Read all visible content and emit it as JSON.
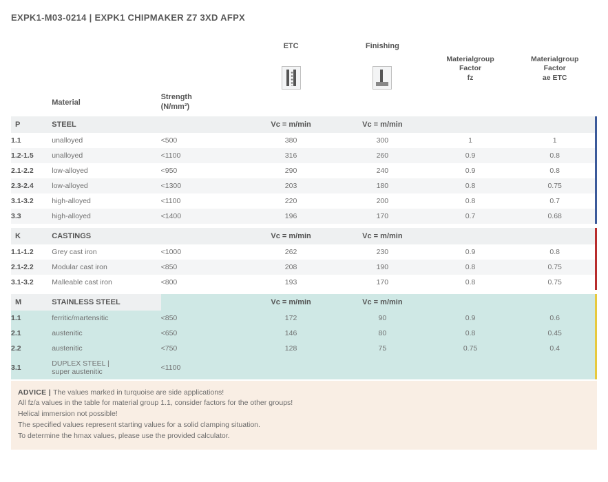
{
  "title_code": "EXPK1-M03-0214",
  "title_sep": " | ",
  "title_name": "EXPK1 CHIPMAKER Z7 3XD AFPX",
  "headers": {
    "material": "Material",
    "strength": "Strength\n(N/mm²)",
    "etc": "ETC",
    "finishing": "Finishing",
    "fz": "Materialgroup\nFactor\nfz",
    "ae": "Materialgroup\nFactor\nae ETC",
    "vc": "Vc = m/min"
  },
  "colors": {
    "group_bg": "#eef0f1",
    "turquoise": "#cfe8e5",
    "accent_p": "#3b5a9a",
    "accent_k": "#b82c2c",
    "accent_m": "#e7c93e",
    "advice_bg": "#f9eee4"
  },
  "groups": [
    {
      "code": "P",
      "name": "STEEL",
      "accent": "#3b5a9a",
      "turq": false,
      "rows": [
        {
          "code": "1.1",
          "mat": "unalloyed",
          "str": "<500",
          "etc": "380",
          "fin": "300",
          "fz": "1",
          "ae": "1"
        },
        {
          "code": "1.2-1.5",
          "mat": "unalloyed",
          "str": "<1100",
          "etc": "316",
          "fin": "260",
          "fz": "0.9",
          "ae": "0.8"
        },
        {
          "code": "2.1-2.2",
          "mat": "low-alloyed",
          "str": "<950",
          "etc": "290",
          "fin": "240",
          "fz": "0.9",
          "ae": "0.8"
        },
        {
          "code": "2.3-2.4",
          "mat": "low-alloyed",
          "str": "<1300",
          "etc": "203",
          "fin": "180",
          "fz": "0.8",
          "ae": "0.75"
        },
        {
          "code": "3.1-3.2",
          "mat": "high-alloyed",
          "str": "<1100",
          "etc": "220",
          "fin": "200",
          "fz": "0.8",
          "ae": "0.7"
        },
        {
          "code": "3.3",
          "mat": "high-alloyed",
          "str": "<1400",
          "etc": "196",
          "fin": "170",
          "fz": "0.7",
          "ae": "0.68"
        }
      ]
    },
    {
      "code": "K",
      "name": "CASTINGS",
      "accent": "#b82c2c",
      "turq": false,
      "rows": [
        {
          "code": "1.1-1.2",
          "mat": "Grey cast iron",
          "str": "<1000",
          "etc": "262",
          "fin": "230",
          "fz": "0.9",
          "ae": "0.8"
        },
        {
          "code": "2.1-2.2",
          "mat": "Modular cast iron",
          "str": "<850",
          "etc": "208",
          "fin": "190",
          "fz": "0.8",
          "ae": "0.75"
        },
        {
          "code": "3.1-3.2",
          "mat": "Malleable cast iron",
          "str": "<800",
          "etc": "193",
          "fin": "170",
          "fz": "0.8",
          "ae": "0.75"
        }
      ]
    },
    {
      "code": "M",
      "name": "STAINLESS STEEL",
      "accent": "#e7c93e",
      "turq": true,
      "rows": [
        {
          "code": "1.1",
          "mat": "ferritic/martensitic",
          "str": "<850",
          "etc": "172",
          "fin": "90",
          "fz": "0.9",
          "ae": "0.6"
        },
        {
          "code": "2.1",
          "mat": "austenitic",
          "str": "<650",
          "etc": "146",
          "fin": "80",
          "fz": "0.8",
          "ae": "0.45"
        },
        {
          "code": "2.2",
          "mat": "austenitic",
          "str": "<750",
          "etc": "128",
          "fin": "75",
          "fz": "0.75",
          "ae": "0.4"
        },
        {
          "code": "3.1",
          "mat": "DUPLEX STEEL |\nsuper austenitic",
          "str": "<1100",
          "etc": "",
          "fin": "",
          "fz": "",
          "ae": ""
        }
      ]
    }
  ],
  "advice": {
    "label": "ADVICE",
    "sep": " | ",
    "lines": [
      "The values marked in turquoise are side applications!",
      "All fz/a values in the table for material group 1.1, consider factors for the other groups!",
      "Helical immersion not possible!",
      "The specified values represent starting values for a solid clamping situation.",
      "To determine the hmax values, please use the provided calculator."
    ]
  }
}
